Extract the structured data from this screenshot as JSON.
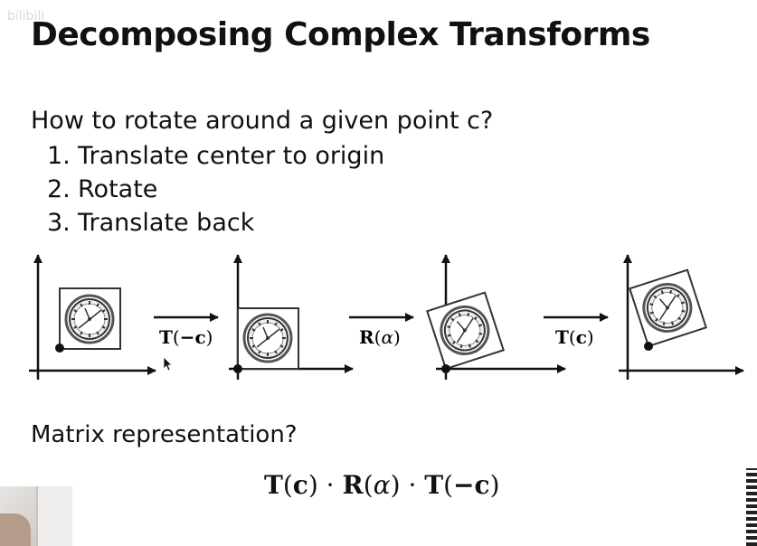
{
  "watermark": "bilibili",
  "title": "Decomposing Complex Transforms",
  "question": "How to rotate around a given point c?",
  "steps": [
    {
      "num": "1.",
      "text": "Translate center to origin"
    },
    {
      "num": "2.",
      "text": "Rotate"
    },
    {
      "num": "3.",
      "text": "Translate back"
    }
  ],
  "operations": [
    {
      "bold": "T",
      "open": "(",
      "arg": "−c",
      "close": ")"
    },
    {
      "bold": "R",
      "open": "(",
      "arg": "α",
      "close": ")"
    },
    {
      "bold": "T",
      "open": "(",
      "arg": "c",
      "close": ")"
    }
  ],
  "matrix_question": "Matrix representation?",
  "formula": {
    "t1": "T",
    "c1": "c",
    "dot1": "·",
    "r": "R",
    "alpha": "α",
    "dot2": "·",
    "t2": "T",
    "c2": "−c"
  }
}
